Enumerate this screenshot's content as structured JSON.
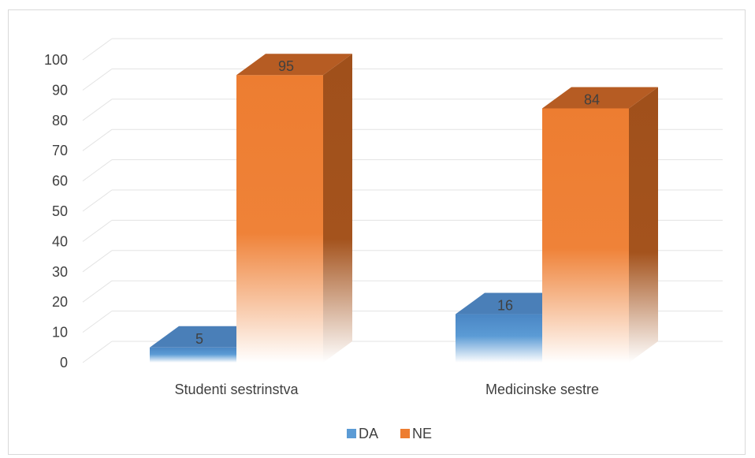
{
  "chart_data": {
    "type": "bar",
    "categories": [
      "Studenti sestrinstva",
      "Medicinske sestre"
    ],
    "series": [
      {
        "name": "DA",
        "values": [
          5,
          16
        ],
        "color": "#5b9bd5"
      },
      {
        "name": "NE",
        "values": [
          95,
          84
        ],
        "color": "#ed7d31"
      }
    ],
    "ylim": [
      0,
      100
    ],
    "yticks": [
      0,
      10,
      20,
      30,
      40,
      50,
      60,
      70,
      80,
      90,
      100
    ],
    "grid": true,
    "legend_position": "bottom",
    "style": "3d-column"
  }
}
